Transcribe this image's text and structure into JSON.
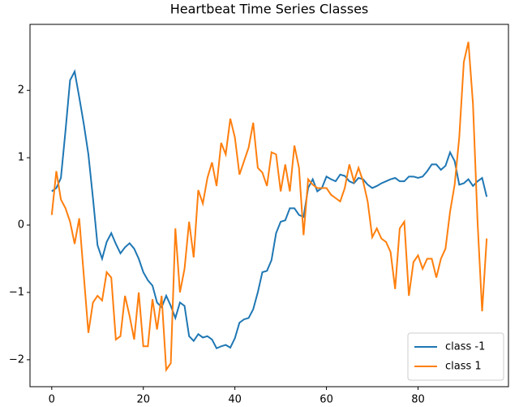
{
  "chart_data": {
    "type": "line",
    "title": "Heartbeat Time Series Classes",
    "x": [
      0,
      1,
      2,
      3,
      4,
      5,
      6,
      7,
      8,
      9,
      10,
      11,
      12,
      13,
      14,
      15,
      16,
      17,
      18,
      19,
      20,
      21,
      22,
      23,
      24,
      25,
      26,
      27,
      28,
      29,
      30,
      31,
      32,
      33,
      34,
      35,
      36,
      37,
      38,
      39,
      40,
      41,
      42,
      43,
      44,
      45,
      46,
      47,
      48,
      49,
      50,
      51,
      52,
      53,
      54,
      55,
      56,
      57,
      58,
      59,
      60,
      61,
      62,
      63,
      64,
      65,
      66,
      67,
      68,
      69,
      70,
      71,
      72,
      73,
      74,
      75,
      76,
      77,
      78,
      79,
      80,
      81,
      82,
      83,
      84,
      85,
      86,
      87,
      88,
      89,
      90,
      91,
      92,
      93,
      94,
      95
    ],
    "series": [
      {
        "name": "class -1",
        "color": "#1f77b4",
        "values": [
          0.5,
          0.55,
          0.7,
          1.4,
          2.15,
          2.28,
          1.9,
          1.5,
          1.05,
          0.4,
          -0.3,
          -0.5,
          -0.25,
          -0.12,
          -0.28,
          -0.42,
          -0.33,
          -0.27,
          -0.35,
          -0.5,
          -0.7,
          -0.82,
          -0.9,
          -1.15,
          -1.22,
          -1.05,
          -1.2,
          -1.38,
          -1.15,
          -1.2,
          -1.65,
          -1.72,
          -1.62,
          -1.67,
          -1.65,
          -1.7,
          -1.83,
          -1.8,
          -1.78,
          -1.82,
          -1.68,
          -1.45,
          -1.4,
          -1.38,
          -1.25,
          -1.0,
          -0.7,
          -0.68,
          -0.52,
          -0.12,
          0.05,
          0.07,
          0.25,
          0.25,
          0.15,
          0.12,
          0.55,
          0.68,
          0.5,
          0.55,
          0.72,
          0.68,
          0.65,
          0.75,
          0.73,
          0.65,
          0.62,
          0.7,
          0.68,
          0.6,
          0.55,
          0.58,
          0.62,
          0.65,
          0.68,
          0.7,
          0.65,
          0.65,
          0.72,
          0.72,
          0.7,
          0.72,
          0.8,
          0.9,
          0.9,
          0.82,
          0.88,
          1.08,
          0.95,
          0.6,
          0.62,
          0.68,
          0.58,
          0.65,
          0.7,
          0.42
        ]
      },
      {
        "name": "class 1",
        "color": "#ff7f0e",
        "values": [
          0.15,
          0.8,
          0.38,
          0.25,
          0.05,
          -0.28,
          0.1,
          -0.75,
          -1.6,
          -1.15,
          -1.05,
          -1.12,
          -0.7,
          -0.78,
          -1.7,
          -1.65,
          -1.05,
          -1.35,
          -1.7,
          -1.0,
          -1.8,
          -1.8,
          -1.1,
          -1.55,
          -1.05,
          -2.15,
          -2.05,
          -0.05,
          -1.0,
          -0.65,
          0.05,
          -0.48,
          0.52,
          0.32,
          0.7,
          0.93,
          0.58,
          1.22,
          1.05,
          1.58,
          1.3,
          0.75,
          0.95,
          1.15,
          1.52,
          0.85,
          0.78,
          0.58,
          1.08,
          1.05,
          0.5,
          0.9,
          0.5,
          1.18,
          0.85,
          -0.15,
          0.68,
          0.6,
          0.55,
          0.55,
          0.55,
          0.45,
          0.4,
          0.35,
          0.55,
          0.9,
          0.65,
          0.85,
          0.65,
          0.35,
          -0.18,
          -0.05,
          -0.2,
          -0.25,
          -0.4,
          -0.95,
          -0.05,
          0.05,
          -1.05,
          -0.55,
          -0.45,
          -0.65,
          -0.5,
          -0.5,
          -0.78,
          -0.5,
          -0.35,
          0.2,
          0.6,
          1.3,
          2.42,
          2.72,
          1.8,
          0.05,
          -1.28,
          -0.2
        ]
      }
    ],
    "xlim": [
      -4.75,
      99.75
    ],
    "ylim": [
      -2.4,
      2.98
    ],
    "xticks": [
      0,
      20,
      40,
      60,
      80
    ],
    "yticks": [
      {
        "value": -2,
        "label": "−2"
      },
      {
        "value": -1,
        "label": "−1"
      },
      0,
      1,
      2
    ],
    "legend": "lower right"
  }
}
